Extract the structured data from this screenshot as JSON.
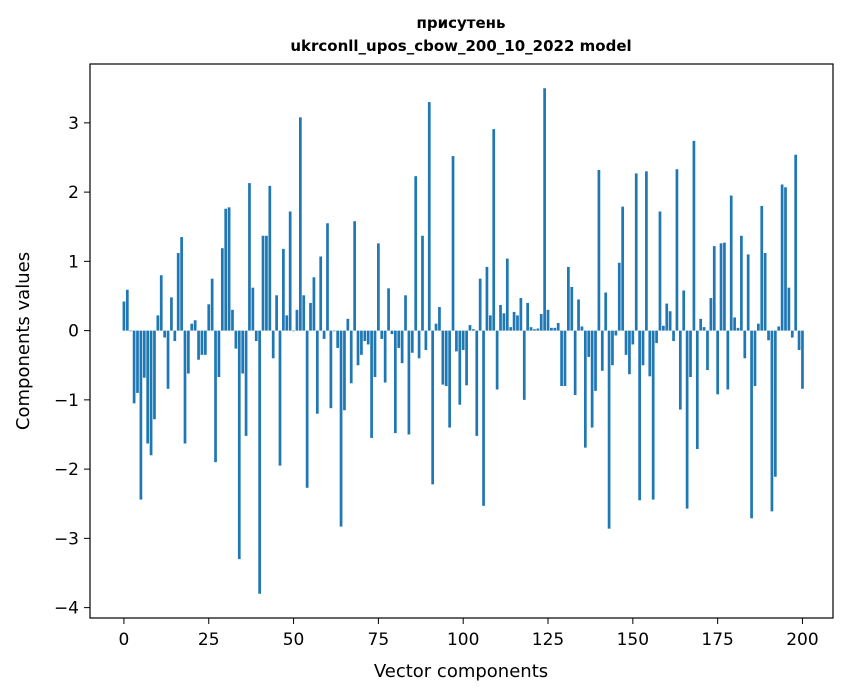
{
  "chart_data": {
    "type": "bar",
    "title_line1": "присутень",
    "title_line2": "ukrconll_upos_cbow_200_10_2022 model",
    "xlabel": "Vector components",
    "ylabel": "Components values",
    "xlim": [
      -10,
      209
    ],
    "ylim": [
      -4.15,
      3.85
    ],
    "x_ticks": [
      0,
      25,
      50,
      75,
      100,
      125,
      150,
      175,
      200
    ],
    "x_tick_labels": [
      "0",
      "25",
      "50",
      "75",
      "100",
      "125",
      "150",
      "175",
      "200"
    ],
    "y_ticks": [
      -4,
      -3,
      -2,
      -1,
      0,
      1,
      2,
      3
    ],
    "y_tick_labels": [
      "−4",
      "−3",
      "−2",
      "−1",
      "0",
      "1",
      "2",
      "3"
    ],
    "bar_color": "#1f77b4",
    "values": [
      0.42,
      0.59,
      0.0,
      -1.05,
      -0.9,
      -2.44,
      -0.68,
      -1.63,
      -1.8,
      -1.28,
      0.22,
      0.8,
      -0.1,
      -0.84,
      0.48,
      -0.15,
      1.12,
      1.35,
      -1.63,
      -0.62,
      0.1,
      0.15,
      -0.42,
      -0.35,
      -0.35,
      0.38,
      0.75,
      -1.9,
      -0.67,
      1.19,
      1.76,
      1.78,
      0.3,
      -0.26,
      -3.3,
      -0.62,
      -1.52,
      2.13,
      0.62,
      -0.15,
      -3.8,
      1.37,
      1.37,
      2.09,
      -0.4,
      0.51,
      -1.95,
      1.18,
      0.22,
      1.72,
      0.0,
      0.3,
      3.08,
      0.51,
      -2.27,
      0.4,
      0.77,
      -1.2,
      1.07,
      -0.12,
      1.55,
      -1.12,
      0.0,
      -0.25,
      -2.83,
      -1.15,
      0.17,
      -0.76,
      1.58,
      -0.5,
      -0.35,
      -0.15,
      -0.2,
      -1.55,
      -0.67,
      1.26,
      -0.12,
      -0.75,
      0.61,
      -0.05,
      -1.48,
      -0.25,
      -0.47,
      0.51,
      -1.5,
      -0.32,
      2.23,
      -0.4,
      1.37,
      -0.28,
      3.3,
      -2.22,
      0.1,
      0.34,
      -0.78,
      -0.8,
      -1.4,
      2.52,
      -0.3,
      -1.07,
      -0.28,
      -0.79,
      0.08,
      0.02,
      -1.52,
      0.75,
      -2.53,
      0.92,
      0.22,
      2.91,
      -0.85,
      0.37,
      0.25,
      1.04,
      0.05,
      0.27,
      0.22,
      0.47,
      -1.0,
      0.4,
      0.05,
      0.02,
      0.03,
      0.24,
      3.5,
      0.3,
      0.04,
      0.04,
      0.11,
      -0.8,
      -0.8,
      0.92,
      0.63,
      -0.93,
      0.45,
      0.06,
      -1.69,
      -0.38,
      -1.4,
      -0.87,
      2.32,
      -0.58,
      0.55,
      -2.86,
      -0.5,
      -0.07,
      0.98,
      1.79,
      -0.35,
      -0.63,
      -0.2,
      2.27,
      -2.45,
      -0.5,
      2.3,
      -0.66,
      -2.44,
      -0.18,
      1.72,
      0.07,
      0.39,
      0.28,
      -0.15,
      2.33,
      -1.14,
      0.58,
      -2.57,
      -0.67,
      2.74,
      -1.71,
      0.17,
      0.05,
      -0.57,
      0.47,
      1.22,
      -0.92,
      1.26,
      1.27,
      -0.85,
      1.95,
      0.19,
      0.04,
      1.37,
      -0.4,
      1.1,
      -2.71,
      -0.8,
      0.1,
      1.8,
      1.12,
      -0.14,
      -2.61,
      -2.11,
      0.06,
      2.11,
      2.07,
      0.62,
      -0.1,
      2.54,
      -0.28,
      -0.84
    ]
  }
}
